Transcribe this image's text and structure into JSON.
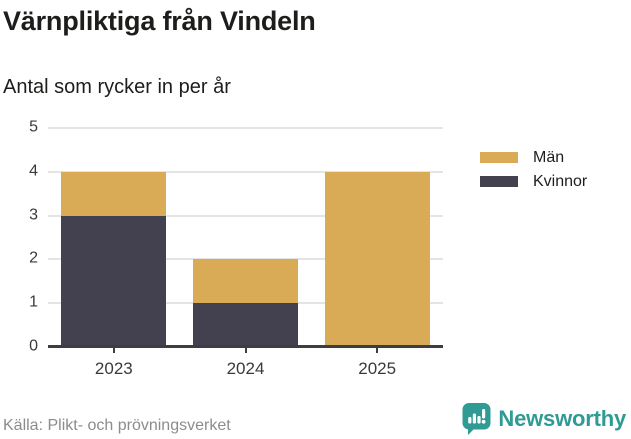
{
  "header": {
    "title": "Värnpliktiga från Vindeln",
    "subtitle": "Antal som rycker in per år"
  },
  "chart_data": {
    "type": "bar",
    "stacked": true,
    "title": "Värnpliktiga från Vindeln",
    "subtitle": "Antal som rycker in per år",
    "categories": [
      "2023",
      "2024",
      "2025"
    ],
    "series": [
      {
        "name": "Män",
        "color": "#d9ab56",
        "values": [
          1,
          1,
          4
        ]
      },
      {
        "name": "Kvinnor",
        "color": "#434150",
        "values": [
          3,
          1,
          0
        ]
      }
    ],
    "stack_order_bottom_to_top": [
      "Kvinnor",
      "Män"
    ],
    "ylim": [
      0,
      5
    ],
    "yticks": [
      0,
      1,
      2,
      3,
      4,
      5
    ],
    "grid": true,
    "legend_position": "right",
    "xlabel": "",
    "ylabel": ""
  },
  "footer": {
    "source": "Källa: Plikt- och prövningsverket",
    "brand": "Newsworthy"
  },
  "colors": {
    "men": "#d9ab56",
    "women": "#434150",
    "brand_teal": "#2f9b94",
    "gridline": "#e4e4e4",
    "axis": "#3d3d42",
    "text_dark": "#1d1d1b",
    "text_axis": "#3a3a3a",
    "text_source": "#8c8c8c",
    "background": "#ffffff"
  }
}
